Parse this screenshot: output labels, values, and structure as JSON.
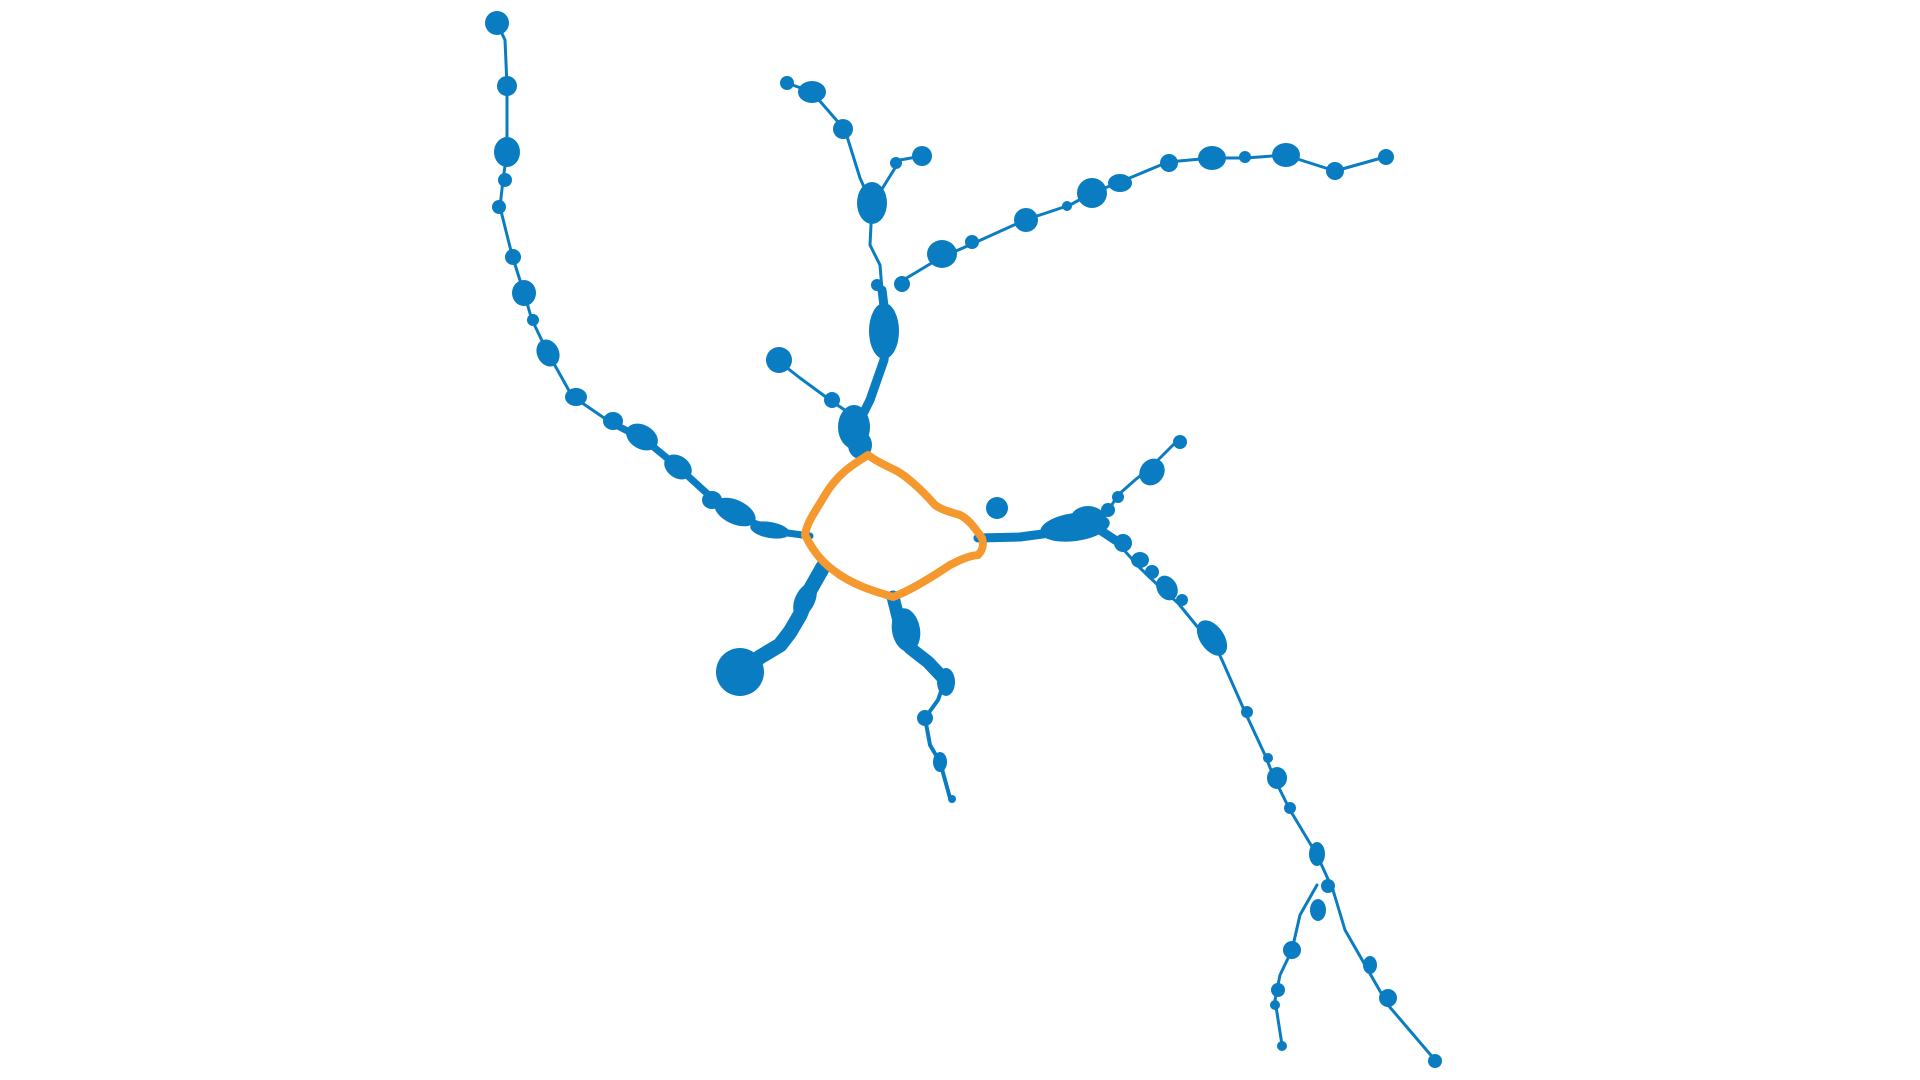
{
  "colors": {
    "background": "#ffffff",
    "branch": "#0a7dc2",
    "loop": "#f5982e"
  }
}
